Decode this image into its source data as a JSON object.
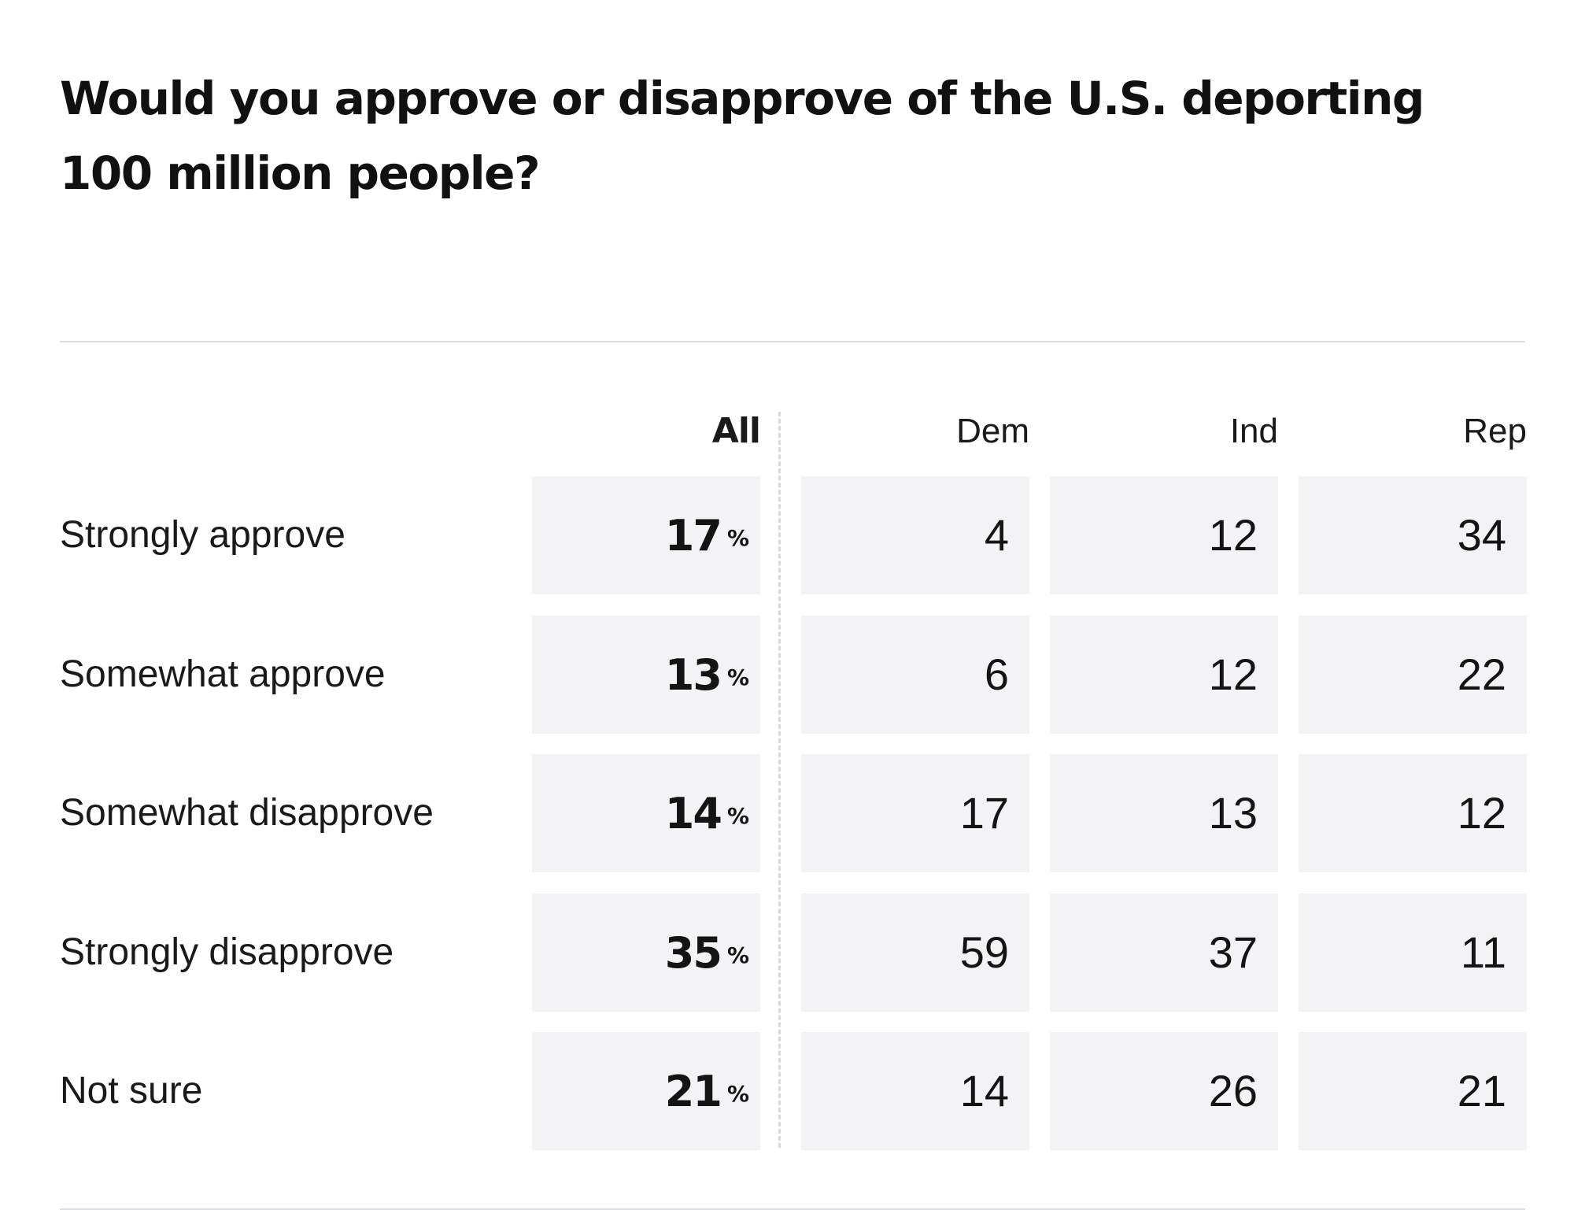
{
  "chart_data": {
    "type": "table",
    "title": "Would you approve or disapprove of the U.S. deporting 100 million people?",
    "columns": [
      "All",
      "Dem",
      "Ind",
      "Rep"
    ],
    "unit": "%",
    "rows": [
      {
        "label": "Strongly approve",
        "values": [
          17,
          4,
          12,
          34
        ]
      },
      {
        "label": "Somewhat approve",
        "values": [
          13,
          6,
          12,
          22
        ]
      },
      {
        "label": "Somewhat disapprove",
        "values": [
          14,
          17,
          13,
          12
        ]
      },
      {
        "label": "Strongly disapprove",
        "values": [
          35,
          59,
          37,
          11
        ]
      },
      {
        "label": "Not sure",
        "values": [
          21,
          14,
          26,
          21
        ]
      }
    ]
  }
}
